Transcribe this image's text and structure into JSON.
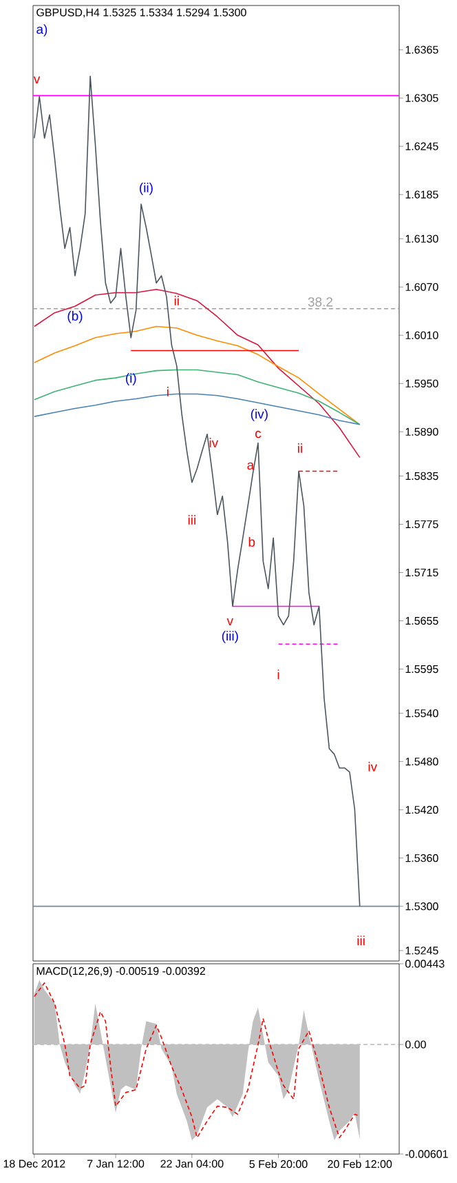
{
  "chart_data": [
    {
      "type": "line",
      "title": "GBPUSD,H4  1.5325 1.5334 1.5294 1.5300",
      "tick_labels": "y",
      "categories": [
        null,
        null,
        null,
        null,
        null,
        null,
        null,
        null,
        null,
        null,
        null,
        null,
        null,
        null,
        null,
        null,
        null,
        null,
        null,
        null,
        null,
        null,
        null,
        null,
        null,
        null,
        null,
        null,
        null,
        null,
        null,
        null,
        null,
        null,
        null,
        null,
        null,
        null,
        null,
        null,
        null,
        null,
        null,
        null,
        null,
        null,
        null,
        null,
        null,
        null,
        null,
        null,
        null,
        null,
        null,
        null,
        null,
        null,
        null,
        null,
        null,
        null,
        null,
        null,
        null
      ],
      "ylim": [
        1.5232,
        1.642
      ],
      "yticks": [
        {
          "value": 1.6365,
          "label": "1.6365"
        },
        {
          "value": 1.6305,
          "label": "1.6305"
        },
        {
          "value": 1.6245,
          "label": "1.6245"
        },
        {
          "value": 1.6185,
          "label": "1.6185"
        },
        {
          "value": 1.613,
          "label": "1.6130"
        },
        {
          "value": 1.607,
          "label": "1.6070"
        },
        {
          "value": 1.601,
          "label": "1.6010"
        },
        {
          "value": 1.595,
          "label": "1.5950"
        },
        {
          "value": 1.589,
          "label": "1.5890"
        },
        {
          "value": 1.5835,
          "label": "1.5835"
        },
        {
          "value": 1.5775,
          "label": "1.5775"
        },
        {
          "value": 1.5715,
          "label": "1.5715"
        },
        {
          "value": 1.5655,
          "label": "1.5655"
        },
        {
          "value": 1.5595,
          "label": "1.5595"
        },
        {
          "value": 1.554,
          "label": "1.5540"
        },
        {
          "value": 1.548,
          "label": "1.5480"
        },
        {
          "value": 1.542,
          "label": "1.5420"
        },
        {
          "value": 1.536,
          "label": "1.5360"
        },
        {
          "value": 1.53,
          "label": "1.5300"
        },
        {
          "value": 1.5245,
          "label": "1.5245"
        }
      ],
      "series": [
        {
          "color": "#dc143c",
          "values": [
            1.6021,
            null,
            null,
            null,
            1.6038,
            null,
            null,
            null,
            1.6046,
            null,
            null,
            null,
            1.606,
            null,
            null,
            null,
            1.6063,
            null,
            null,
            null,
            1.6063,
            null,
            null,
            null,
            1.6067,
            null,
            null,
            null,
            1.6062,
            null,
            null,
            null,
            1.6053,
            null,
            null,
            null,
            1.6033,
            null,
            null,
            null,
            1.601,
            null,
            null,
            null,
            1.5998,
            null,
            null,
            null,
            1.5969,
            null,
            null,
            null,
            1.5947,
            null,
            null,
            null,
            1.5925,
            null,
            null,
            null,
            1.5895,
            null,
            null,
            null,
            1.5858
          ]
        },
        {
          "color": "#ff8c00",
          "values": [
            1.5976,
            null,
            null,
            null,
            1.5988,
            null,
            null,
            null,
            1.5997,
            null,
            null,
            null,
            1.6007,
            null,
            null,
            null,
            1.6012,
            null,
            null,
            null,
            1.6015,
            null,
            null,
            null,
            1.6021,
            null,
            null,
            null,
            1.6019,
            null,
            null,
            null,
            1.601,
            null,
            null,
            null,
            1.6003,
            null,
            null,
            null,
            1.5997,
            null,
            null,
            null,
            1.5986,
            null,
            null,
            null,
            1.5971,
            null,
            null,
            null,
            1.5957,
            null,
            null,
            null,
            1.5937,
            null,
            null,
            null,
            1.5918,
            null,
            null,
            null,
            1.5899
          ]
        },
        {
          "color": "#3cb371",
          "values": [
            1.593,
            null,
            null,
            null,
            1.594,
            null,
            null,
            null,
            1.5947,
            null,
            null,
            null,
            1.5954,
            null,
            null,
            null,
            1.5957,
            null,
            null,
            null,
            1.5962,
            null,
            null,
            null,
            1.5966,
            null,
            null,
            null,
            1.5967,
            null,
            null,
            null,
            1.5967,
            null,
            null,
            null,
            1.5964,
            null,
            null,
            null,
            1.5961,
            null,
            null,
            null,
            1.5952,
            null,
            null,
            null,
            1.5945,
            null,
            null,
            null,
            1.5938,
            null,
            null,
            null,
            1.5928,
            null,
            null,
            null,
            1.5914,
            null,
            null,
            null,
            1.5899
          ]
        },
        {
          "color": "#4682b4",
          "values": [
            1.5909,
            null,
            null,
            null,
            1.5914,
            null,
            null,
            null,
            1.5919,
            null,
            null,
            null,
            1.5923,
            null,
            null,
            null,
            1.5928,
            null,
            null,
            null,
            1.5931,
            null,
            null,
            null,
            1.5935,
            null,
            null,
            null,
            1.5937,
            null,
            null,
            null,
            1.5937,
            null,
            null,
            null,
            1.5935,
            null,
            null,
            null,
            1.5931,
            null,
            null,
            null,
            1.5926,
            null,
            null,
            null,
            1.5921,
            null,
            null,
            null,
            1.5916,
            null,
            null,
            null,
            1.5911,
            null,
            null,
            null,
            1.5904,
            null,
            null,
            null,
            1.5899
          ]
        },
        {
          "color": "#ff0000",
          "values": [
            null,
            null,
            null,
            null,
            null,
            null,
            null,
            null,
            null,
            null,
            null,
            null,
            null,
            null,
            null,
            null,
            null,
            null,
            null,
            1.5991,
            null,
            null,
            null,
            null,
            null,
            null,
            null,
            null,
            null,
            null,
            null,
            null,
            null,
            null,
            null,
            null,
            null,
            null,
            null,
            null,
            null,
            null,
            null,
            null,
            null,
            null,
            null,
            null,
            null,
            null,
            null,
            null,
            1.5991,
            null,
            null,
            null,
            null,
            null,
            null,
            null,
            null,
            null,
            null,
            null,
            null
          ]
        },
        {
          "color": "#ff0000",
          "line_style": "dashed",
          "values": [
            null,
            null,
            null,
            null,
            null,
            null,
            null,
            null,
            null,
            null,
            null,
            null,
            null,
            null,
            null,
            null,
            null,
            null,
            null,
            null,
            null,
            null,
            null,
            null,
            null,
            null,
            null,
            null,
            null,
            null,
            null,
            null,
            null,
            null,
            null,
            null,
            null,
            null,
            null,
            null,
            null,
            null,
            null,
            null,
            null,
            null,
            null,
            null,
            null,
            null,
            null,
            null,
            1.5841,
            null,
            null,
            null,
            null,
            null,
            null,
            null,
            1.5841,
            null,
            null,
            null,
            null
          ]
        },
        {
          "color": "#ff00ff",
          "values": [
            null,
            null,
            null,
            null,
            null,
            null,
            null,
            null,
            null,
            null,
            null,
            null,
            null,
            null,
            null,
            null,
            null,
            null,
            null,
            null,
            null,
            null,
            null,
            null,
            null,
            null,
            null,
            null,
            null,
            null,
            null,
            null,
            null,
            null,
            null,
            null,
            null,
            null,
            null,
            1.5673,
            null,
            null,
            null,
            null,
            null,
            null,
            null,
            null,
            null,
            null,
            null,
            null,
            null,
            null,
            null,
            null,
            1.5673,
            null,
            null,
            null,
            null,
            null,
            null,
            null,
            null
          ]
        },
        {
          "color": "#ff00ff",
          "line_style": "dashed",
          "values": [
            null,
            null,
            null,
            null,
            null,
            null,
            null,
            null,
            null,
            null,
            null,
            null,
            null,
            null,
            null,
            null,
            null,
            null,
            null,
            null,
            null,
            null,
            null,
            null,
            null,
            null,
            null,
            null,
            null,
            null,
            null,
            null,
            null,
            null,
            null,
            null,
            null,
            null,
            null,
            null,
            null,
            null,
            null,
            null,
            null,
            null,
            null,
            null,
            1.5626,
            null,
            null,
            null,
            null,
            null,
            null,
            null,
            null,
            null,
            null,
            null,
            1.5626,
            null,
            null,
            null,
            null
          ]
        },
        {
          "color": "#4a5560",
          "values": [
            1.6255,
            1.6307,
            1.6255,
            1.6284,
            1.623,
            1.617,
            1.6118,
            1.6144,
            1.6084,
            1.6118,
            1.6161,
            1.6332,
            1.6247,
            1.6152,
            1.6075,
            1.605,
            1.6058,
            1.6118,
            1.6058,
            1.6007,
            1.6041,
            1.6173,
            1.6144,
            1.611,
            1.6075,
            1.6084,
            1.6058,
            1.5998,
            1.5972,
            1.5912,
            1.5866,
            1.5827,
            1.5844,
            1.5866,
            1.5887,
            1.5839,
            1.5787,
            1.581,
            1.5753,
            1.5673,
            1.5719,
            1.5758,
            1.5798,
            1.5839,
            1.5876,
            1.5729,
            1.5695,
            1.5758,
            1.5661,
            1.565,
            1.5661,
            1.5729,
            1.5841,
            1.5798,
            1.569,
            1.565,
            1.5673,
            1.5558,
            1.5496,
            1.5489,
            1.5472,
            1.5472,
            1.5467,
            1.5421,
            1.53
          ]
        }
      ],
      "ref_lines": [
        {
          "axis": "y",
          "value": 1.6308,
          "color": "#ff00ff"
        },
        {
          "axis": "y",
          "value": 1.6043,
          "color": "#a0a0a0",
          "line_style": "dashed"
        },
        {
          "axis": "y",
          "value": 1.53,
          "color": "#778899"
        }
      ],
      "annotations": [
        "a)",
        "v",
        "(ii)",
        "(b)",
        "ii",
        "38.2",
        "(i)",
        "i",
        "(iv)",
        "iv",
        "c",
        "ii",
        "a",
        "iii",
        "b",
        "v",
        "(iii)",
        "i",
        "iv",
        "iii"
      ]
    },
    {
      "type": "line",
      "title": "MACD(12,26,9) -0.00519 -0.00392",
      "categories": [
        "18 Dec 2012",
        null,
        null,
        null,
        null,
        null,
        null,
        null,
        null,
        null,
        null,
        null,
        null,
        null,
        null,
        null,
        "7 Jan 12:00",
        null,
        null,
        null,
        null,
        null,
        null,
        null,
        null,
        null,
        null,
        null,
        null,
        null,
        null,
        "22 Jan 04:00",
        null,
        null,
        null,
        null,
        null,
        null,
        null,
        null,
        null,
        null,
        null,
        null,
        null,
        null,
        null,
        null,
        "5 Feb 20:00",
        null,
        null,
        null,
        null,
        null,
        null,
        null,
        null,
        null,
        null,
        null,
        null,
        null,
        null,
        null,
        "20 Feb 12:00"
      ],
      "ylim": [
        -0.00601,
        0.00443
      ],
      "yticks": [
        {
          "value": 0.00443,
          "label": "0.00443"
        },
        {
          "value": 0,
          "label": "0.00"
        },
        {
          "value": -0.00601,
          "label": "-0.00601"
        }
      ],
      "ref_lines": [
        {
          "axis": "y",
          "value": 0,
          "color": "#c0c0c0",
          "line_style": "dashed"
        }
      ],
      "series": [
        {
          "type": "area",
          "color": "#c0c0c0",
          "values": [
            0.00278,
            0.00353,
            0.003,
            null,
            0.00225,
            0,
            -0.00098,
            null,
            -0.00225,
            -0.0027,
            -0.0015,
            0,
            0.00225,
            0.00075,
            -0.00075,
            null,
            -0.00375,
            -0.00248,
            -0.00225,
            null,
            -0.00248,
            -0.00023,
            0.00128,
            null,
            0.00113,
            -0.00023,
            null,
            -0.0012,
            -0.0027,
            null,
            -0.0042,
            -0.00526,
            -0.00496,
            null,
            -0.00345,
            null,
            -0.003,
            null,
            -0.00345,
            -0.00398,
            null,
            -0.0027,
            -0.00045,
            0.00128,
            0.00203,
            0.00053,
            -0.00098,
            null,
            -0.00173,
            -0.003,
            -0.00248,
            null,
            0,
            0.00188,
            0.00053,
            null,
            -0.00195,
            null,
            -0.0042,
            -0.00526,
            -0.00473,
            null,
            -0.0042,
            -0.00375,
            -0.00519
          ]
        },
        {
          "type": "line",
          "color": "#ff0000",
          "line_style": "dashed",
          "values": [
            0.00263,
            null,
            0.00338,
            null,
            0.00225,
            null,
            0,
            -0.00173,
            null,
            -0.0024,
            -0.00225,
            0,
            null,
            0.0018,
            0.00128,
            -0.0012,
            -0.00338,
            null,
            -0.00263,
            null,
            -0.00248,
            null,
            -0.00023,
            null,
            0.00105,
            0.00038,
            null,
            -0.0012,
            null,
            -0.00248,
            null,
            -0.00398,
            -0.00511,
            null,
            -0.0042,
            null,
            -0.00338,
            null,
            -0.00345,
            null,
            -0.00383,
            null,
            -0.00248,
            null,
            0,
            0.00143,
            0.0003,
            null,
            -0.0015,
            -0.00225,
            null,
            -0.003,
            -0.00023,
            null,
            0.00075,
            null,
            -0.0012,
            null,
            -0.00345,
            null,
            -0.00511,
            -0.00473,
            null,
            -0.00383,
            -0.00392
          ]
        }
      ]
    }
  ]
}
